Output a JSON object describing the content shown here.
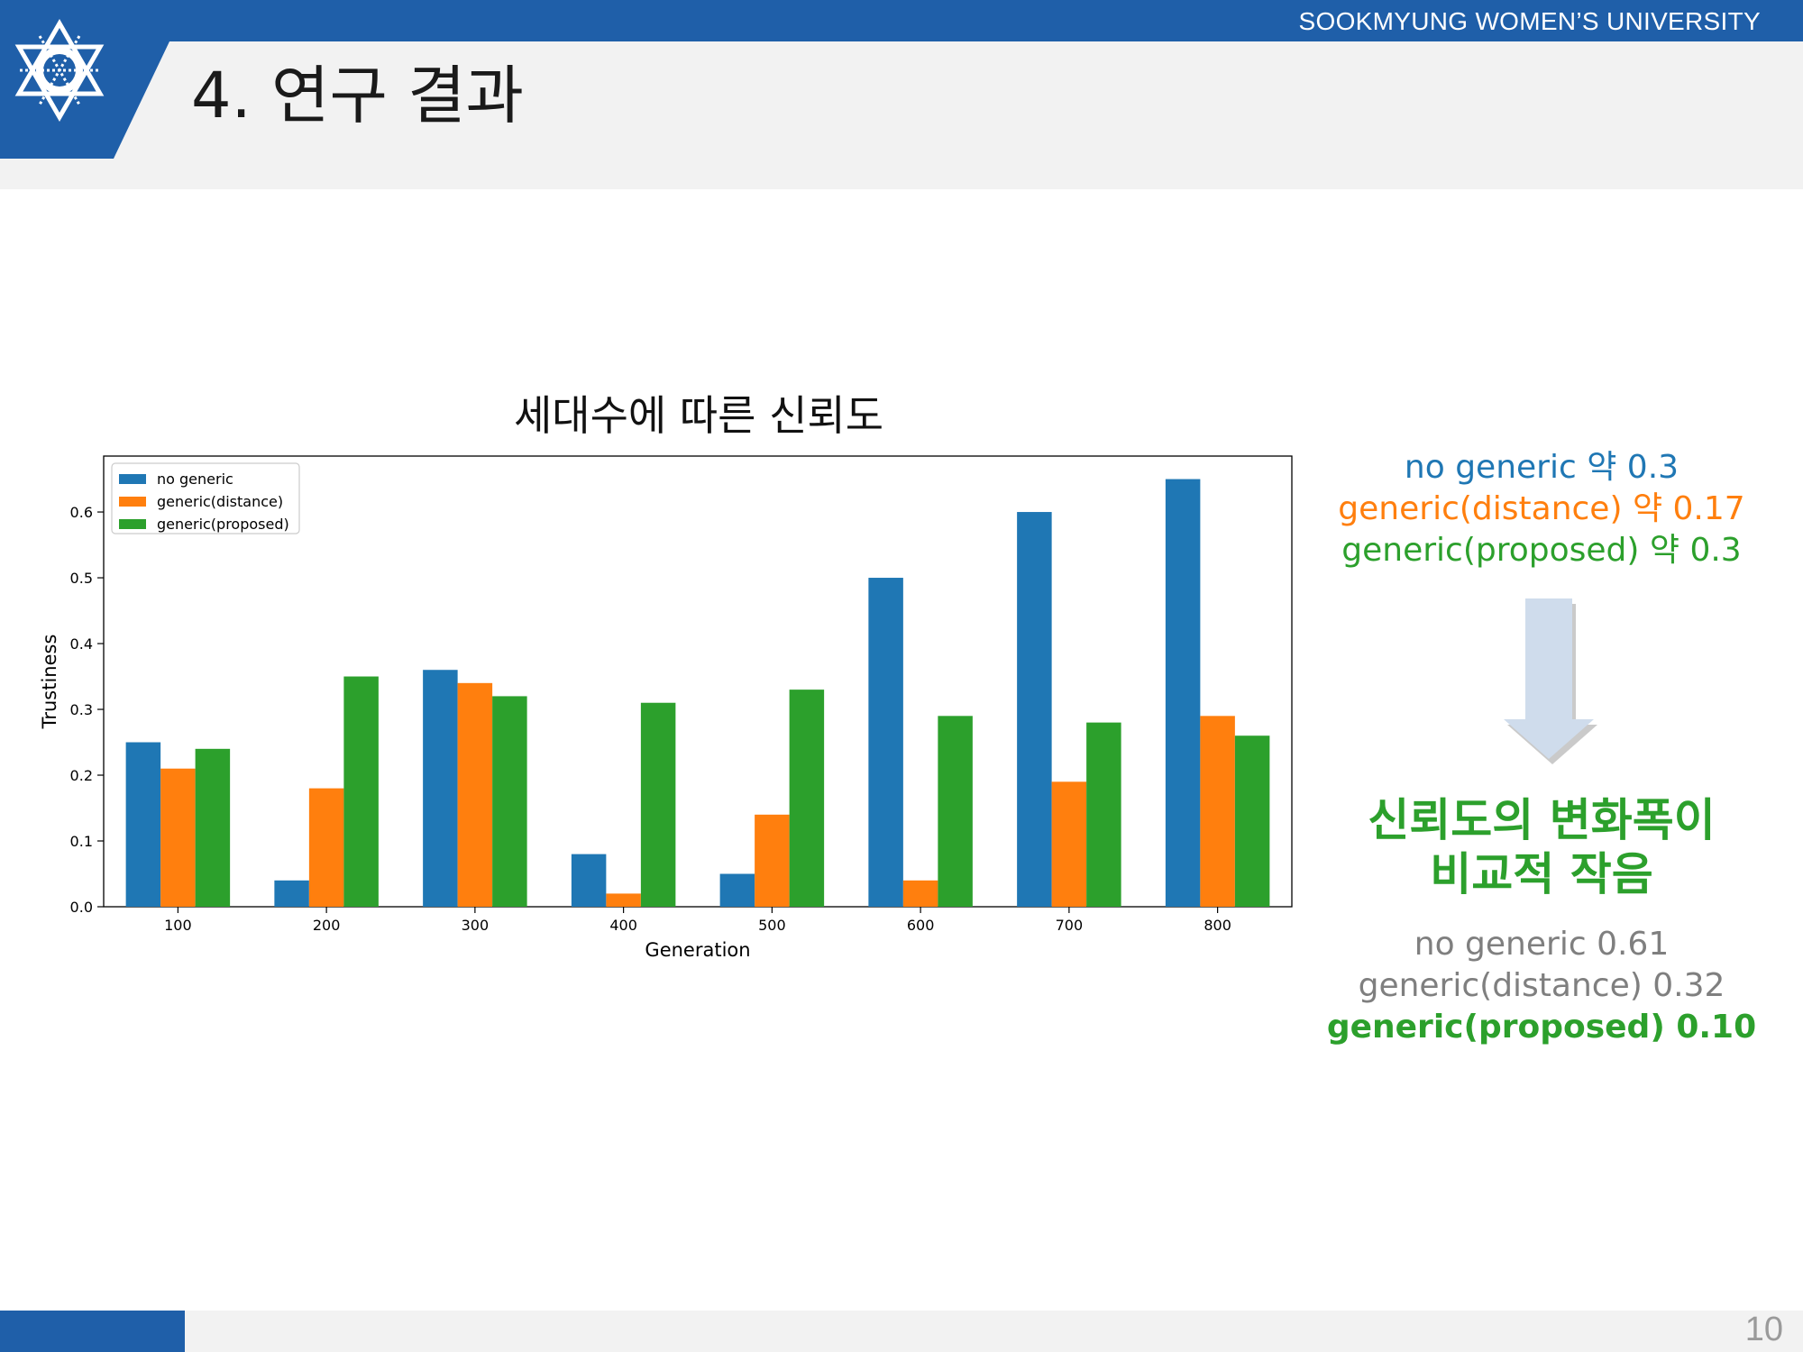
{
  "header": {
    "university": "SOOKMYUNG WOMEN’S UNIVERSITY",
    "title": "4. 연구 결과"
  },
  "footer": {
    "page_number": "10"
  },
  "colors": {
    "brand_blue": "#1f5fa9",
    "series_blue": "#1f77b4",
    "series_orange": "#ff7f0e",
    "series_green": "#2ca02c"
  },
  "chart_data": {
    "type": "bar",
    "title": "세대수에 따른 신뢰도",
    "xlabel": "Generation",
    "ylabel": "Trustiness",
    "categories": [
      "100",
      "200",
      "300",
      "400",
      "500",
      "600",
      "700",
      "800"
    ],
    "series": [
      {
        "name": "no generic",
        "color": "#1f77b4",
        "values": [
          0.25,
          0.04,
          0.36,
          0.08,
          0.05,
          0.5,
          0.6,
          0.65
        ]
      },
      {
        "name": "generic(distance)",
        "color": "#ff7f0e",
        "values": [
          0.21,
          0.18,
          0.34,
          0.02,
          0.14,
          0.04,
          0.19,
          0.29
        ]
      },
      {
        "name": "generic(proposed)",
        "color": "#2ca02c",
        "values": [
          0.24,
          0.35,
          0.32,
          0.31,
          0.33,
          0.29,
          0.28,
          0.26
        ]
      }
    ],
    "ylim": [
      0,
      0.685
    ],
    "yticks": [
      "0.0",
      "0.1",
      "0.2",
      "0.3",
      "0.4",
      "0.5",
      "0.6"
    ],
    "grid": false,
    "legend": "top-left"
  },
  "side": {
    "approx": [
      {
        "label": "no generic",
        "text": "약 0.3"
      },
      {
        "label": "generic(distance)",
        "text": "약 0.17"
      },
      {
        "label": "generic(proposed)",
        "text": "약 0.3"
      }
    ],
    "conclusion_line1": "신뢰도의 변화폭이",
    "conclusion_line2": "비교적 작음",
    "ranges": [
      {
        "label": "no generic",
        "value": "0.61"
      },
      {
        "label": "generic(distance)",
        "value": "0.32"
      },
      {
        "label": "generic(proposed)",
        "value": "0.10"
      }
    ]
  }
}
